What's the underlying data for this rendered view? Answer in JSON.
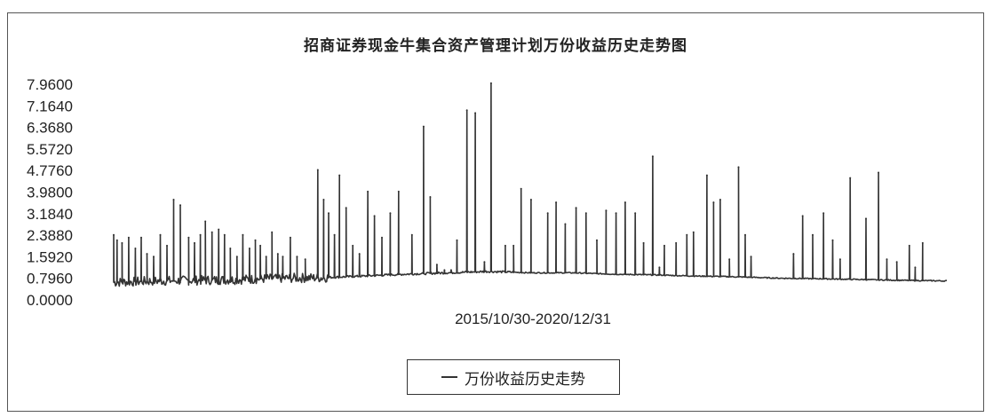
{
  "chart_data": {
    "type": "line",
    "title": "招商证券现金牛集合资产管理计划万份收益历史走势图",
    "x_range_label": "2015/10/30-2020/12/31",
    "y_ticks": [
      "7.9600",
      "7.1640",
      "6.3680",
      "5.5720",
      "4.7760",
      "3.9800",
      "3.1840",
      "2.3880",
      "1.5920",
      "0.7960",
      "0.0000"
    ],
    "ylim": [
      0,
      7.96
    ],
    "grid": false,
    "legend_position": "bottom-center",
    "series": [
      {
        "name": "万份收益历史走势",
        "color": "#333333",
        "baseline": [
          [
            0.0,
            0.65
          ],
          [
            0.05,
            0.7
          ],
          [
            0.1,
            0.72
          ],
          [
            0.15,
            0.75
          ],
          [
            0.2,
            0.8
          ],
          [
            0.25,
            0.82
          ],
          [
            0.3,
            0.88
          ],
          [
            0.35,
            0.95
          ],
          [
            0.4,
            1.0
          ],
          [
            0.45,
            1.05
          ],
          [
            0.5,
            1.0
          ],
          [
            0.55,
            1.0
          ],
          [
            0.6,
            0.95
          ],
          [
            0.65,
            0.92
          ],
          [
            0.7,
            0.88
          ],
          [
            0.75,
            0.85
          ],
          [
            0.8,
            0.8
          ],
          [
            0.85,
            0.78
          ],
          [
            0.9,
            0.75
          ],
          [
            0.95,
            0.72
          ],
          [
            1.0,
            0.7
          ]
        ],
        "spikes": [
          [
            0.0,
            2.4
          ],
          [
            0.004,
            2.2
          ],
          [
            0.01,
            2.1
          ],
          [
            0.018,
            2.3
          ],
          [
            0.026,
            1.9
          ],
          [
            0.033,
            2.3
          ],
          [
            0.04,
            1.7
          ],
          [
            0.048,
            1.6
          ],
          [
            0.056,
            2.4
          ],
          [
            0.064,
            2.0
          ],
          [
            0.072,
            3.7
          ],
          [
            0.08,
            3.5
          ],
          [
            0.09,
            2.3
          ],
          [
            0.097,
            2.1
          ],
          [
            0.104,
            2.4
          ],
          [
            0.11,
            2.9
          ],
          [
            0.118,
            2.5
          ],
          [
            0.126,
            2.6
          ],
          [
            0.133,
            2.4
          ],
          [
            0.14,
            1.9
          ],
          [
            0.148,
            1.6
          ],
          [
            0.155,
            2.4
          ],
          [
            0.163,
            1.9
          ],
          [
            0.17,
            2.2
          ],
          [
            0.176,
            2.0
          ],
          [
            0.183,
            1.6
          ],
          [
            0.19,
            2.5
          ],
          [
            0.197,
            1.7
          ],
          [
            0.203,
            1.6
          ],
          [
            0.212,
            2.3
          ],
          [
            0.22,
            1.6
          ],
          [
            0.23,
            1.5
          ],
          [
            0.245,
            4.8
          ],
          [
            0.252,
            3.7
          ],
          [
            0.258,
            3.2
          ],
          [
            0.265,
            2.4
          ],
          [
            0.271,
            4.6
          ],
          [
            0.279,
            3.4
          ],
          [
            0.287,
            2.0
          ],
          [
            0.295,
            1.7
          ],
          [
            0.305,
            4.0
          ],
          [
            0.313,
            3.1
          ],
          [
            0.322,
            2.3
          ],
          [
            0.332,
            3.2
          ],
          [
            0.342,
            4.0
          ],
          [
            0.358,
            2.4
          ],
          [
            0.372,
            6.4
          ],
          [
            0.38,
            3.8
          ],
          [
            0.388,
            1.3
          ],
          [
            0.397,
            1.1
          ],
          [
            0.405,
            1.1
          ],
          [
            0.412,
            2.2
          ],
          [
            0.424,
            7.0
          ],
          [
            0.434,
            6.9
          ],
          [
            0.445,
            1.4
          ],
          [
            0.453,
            8.0
          ],
          [
            0.47,
            2.0
          ],
          [
            0.48,
            2.0
          ],
          [
            0.489,
            4.1
          ],
          [
            0.501,
            3.7
          ],
          [
            0.521,
            3.2
          ],
          [
            0.531,
            3.6
          ],
          [
            0.542,
            2.8
          ],
          [
            0.555,
            3.4
          ],
          [
            0.567,
            3.2
          ],
          [
            0.58,
            2.2
          ],
          [
            0.591,
            3.3
          ],
          [
            0.603,
            3.2
          ],
          [
            0.614,
            3.6
          ],
          [
            0.626,
            3.2
          ],
          [
            0.636,
            2.1
          ],
          [
            0.647,
            5.3
          ],
          [
            0.655,
            1.2
          ],
          [
            0.661,
            2.0
          ],
          [
            0.675,
            2.1
          ],
          [
            0.688,
            2.4
          ],
          [
            0.696,
            2.5
          ],
          [
            0.712,
            4.6
          ],
          [
            0.72,
            3.6
          ],
          [
            0.728,
            3.7
          ],
          [
            0.739,
            1.5
          ],
          [
            0.75,
            4.9
          ],
          [
            0.758,
            2.4
          ],
          [
            0.765,
            1.6
          ],
          [
            0.816,
            1.7
          ],
          [
            0.827,
            3.1
          ],
          [
            0.839,
            2.4
          ],
          [
            0.852,
            3.2
          ],
          [
            0.863,
            2.2
          ],
          [
            0.872,
            1.5
          ],
          [
            0.884,
            4.5
          ],
          [
            0.903,
            3.0
          ],
          [
            0.918,
            4.7
          ],
          [
            0.928,
            1.5
          ],
          [
            0.94,
            1.4
          ],
          [
            0.955,
            2.0
          ],
          [
            0.962,
            1.2
          ],
          [
            0.971,
            2.1
          ]
        ]
      }
    ]
  }
}
